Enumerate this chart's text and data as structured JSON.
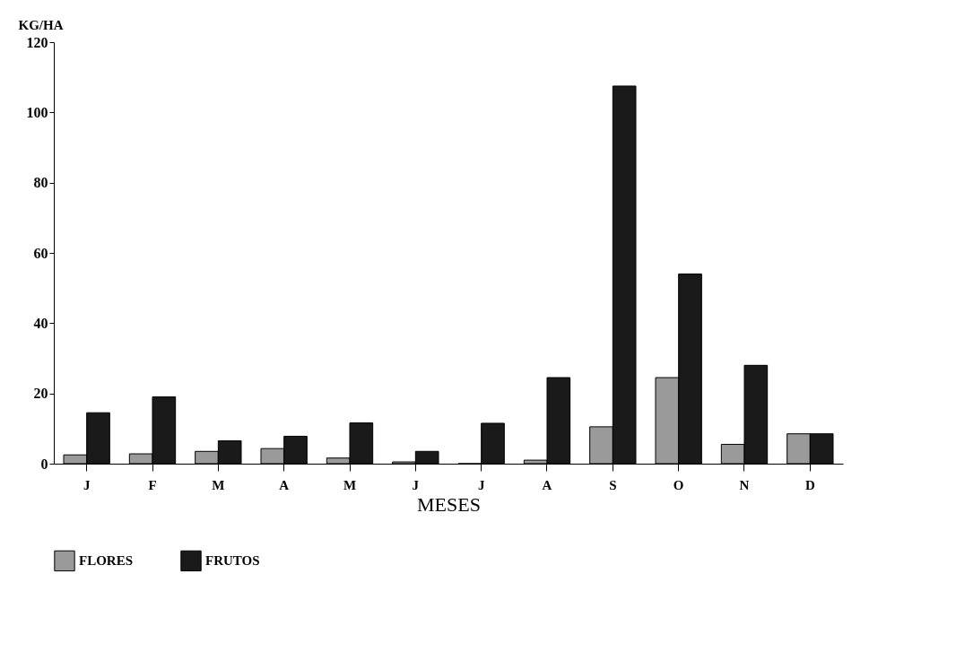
{
  "chart_data": {
    "type": "bar",
    "ylabel": "KG/HA",
    "xlabel": "MESES",
    "categories": [
      "J",
      "F",
      "M",
      "A",
      "M",
      "J",
      "J",
      "A",
      "S",
      "O",
      "N",
      "D"
    ],
    "series": [
      {
        "name": "FLORES",
        "color": "#9a9a9a",
        "values": [
          2.5,
          2.8,
          3.5,
          4.3,
          1.6,
          0.5,
          0,
          1,
          10.5,
          24.5,
          5.5,
          8.5
        ]
      },
      {
        "name": "FRUTOS",
        "color": "#1a1a1a",
        "values": [
          14.5,
          19,
          6.5,
          7.8,
          11.6,
          3.5,
          11.5,
          24.5,
          107.5,
          54,
          28,
          8.5
        ]
      }
    ],
    "ylim": [
      0,
      120
    ],
    "yticks": [
      0,
      20,
      40,
      60,
      80,
      100,
      120
    ],
    "grid": false,
    "legend": "bottom"
  }
}
